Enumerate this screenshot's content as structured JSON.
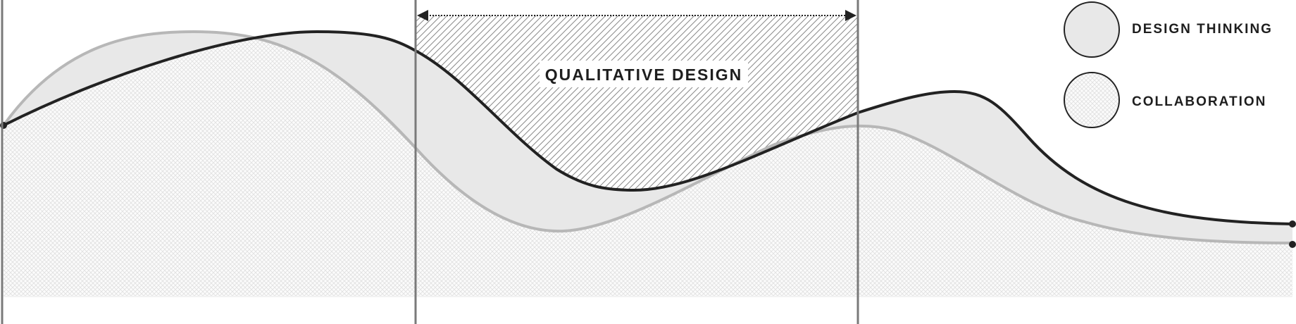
{
  "diagram": {
    "band_label": "QUALITATIVE DESIGN",
    "legend": [
      {
        "key": "design-thinking",
        "label": "DESIGN THINKING",
        "swatch": "solid"
      },
      {
        "key": "collaboration",
        "label": "COLLABORATION",
        "swatch": "crosshatch"
      }
    ]
  },
  "colors": {
    "dark_curve": "#222222",
    "light_curve": "#b7b7b7",
    "area_fill": "#e8e8e8",
    "hatch": "#dcdcdc",
    "divider": "#7a7a7a"
  }
}
